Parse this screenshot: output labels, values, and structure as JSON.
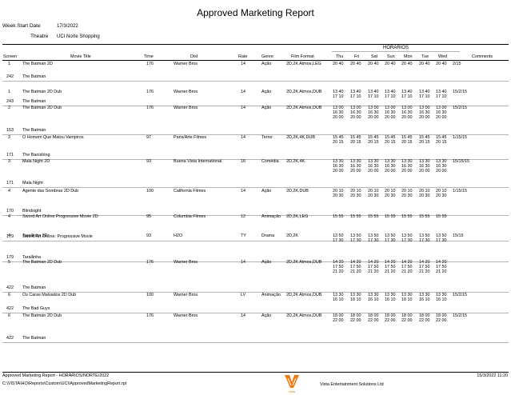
{
  "report": {
    "title": "Approved Marketing Report",
    "week_start_label": "Week Start Date",
    "week_start_value": "17/3/2022",
    "theatre_label": "Theatre",
    "theatre_value": "UCI Norte Shopping"
  },
  "columns": {
    "screen": "Screen",
    "movie_title": "Movie Title",
    "time": "Time",
    "dist": "Dist",
    "rate": "Rate",
    "genre": "Genre",
    "film_format": "Film Format",
    "horarios": "HORÁRIOS",
    "days": [
      "Thu",
      "Fri",
      "Sat",
      "Sun",
      "Mon",
      "Tue",
      "Wed"
    ],
    "comments": "Comments"
  },
  "rows": [
    {
      "screen": "1",
      "title": "The Batman 2D",
      "time": "176",
      "dist": "Warner Bros",
      "rate": "14",
      "genre": "Ação",
      "format": "2D,2K Atmos,LEG",
      "days": [
        "20 40",
        "20 40",
        "20 40",
        "20 40",
        "20 40",
        "20 40",
        "20 40"
      ],
      "wed_extra": "",
      "comments": "2/15",
      "sub_id": "242",
      "sub_title": "The Batman"
    },
    {
      "screen": "1",
      "title": "The Batman 2D Dub",
      "time": "176",
      "dist": "Warner Bros",
      "rate": "14",
      "genre": "Ação",
      "format": "2D,2K Atmos,DUB",
      "days": [
        "13 40\n17 10",
        "13 40\n17 10",
        "13 40\n17 10",
        "13 40\n17 10",
        "13 40\n17 10",
        "13 40\n17 10",
        "13 40\n17 10"
      ],
      "wed_extra": "",
      "comments": "15/2/15",
      "sub_id": "243",
      "sub_title": "The Batman"
    },
    {
      "screen": "2",
      "title": "The Batman 2D Dub",
      "time": "176",
      "dist": "Warner Bros",
      "rate": "14",
      "genre": "Ação",
      "format": "2D,2K Atmos,DUB",
      "days": [
        "13 00\n16 30\n20 00",
        "13 00\n16 30\n20 00",
        "13 00\n16 30\n20 00",
        "13 00\n16 30\n20 00",
        "13 00\n16 30\n20 00",
        "13 00\n16 30\n20 00",
        "13 00\n16 30\n20 00"
      ],
      "wed_extra": "",
      "comments": "15/2/15",
      "sub_id": "153",
      "sub_title": "The Batman"
    },
    {
      "screen": "3",
      "title": "O Homem Que Matou Vampiros",
      "time": "97",
      "dist": "Paris/Arte Filmes",
      "rate": "14",
      "genre": "Terror",
      "format": "2D,2K,4K,DUB",
      "days": [
        "15 45\n20 15",
        "15 45\n20 15",
        "15 45\n20 15",
        "15 45\n20 15",
        "15 45\n20 15",
        "15 45\n20 15",
        "15 45\n20 15"
      ],
      "wed_extra": "",
      "comments": "1/15/15",
      "sub_id": "171",
      "sub_title": "The Banishing"
    },
    {
      "screen": "3",
      "title": "Mala Night 2D",
      "time": "93",
      "dist": "Buena Vista International",
      "rate": "16",
      "genre": "Comédia",
      "format": "2D,2K,4K",
      "days": [
        "13 30\n16 30\n20 00",
        "13 30\n16 30\n20 00",
        "13 30\n16 30\n20 00",
        "13 30\n16 30\n20 00",
        "13 30\n16 30\n20 00",
        "13 30\n16 30\n20 00",
        "13 30\n16 30\n20 00"
      ],
      "wed_extra": "",
      "comments": "15/15/15",
      "sub_id": "171",
      "sub_title": "Mala Night"
    },
    {
      "screen": "4",
      "title": "Agente das Sombras 2D Dub",
      "time": "100",
      "dist": "California Filmes",
      "rate": "14",
      "genre": "Ação",
      "format": "2D,2K,DUB",
      "days": [
        "20 10\n20 30",
        "20 10\n20 30",
        "20 10\n20 30",
        "20 10\n20 30",
        "20 10\n20 30",
        "20 10\n20 30",
        "20 10\n20 30"
      ],
      "wed_extra": "",
      "comments": "1/15/15",
      "sub_id": "170",
      "sub_title": "Blindsight"
    },
    {
      "screen": "4",
      "title": "Sword Art Online Progressive Movie 2D",
      "time": "95",
      "dist": "Columbia Filmes",
      "rate": "12",
      "genre": "Animação",
      "format": "2D,2K,LEG",
      "days": [
        "15 55",
        "15 55",
        "15 55",
        "15 55",
        "15 55",
        "15 55",
        "15 55"
      ],
      "wed_extra": "",
      "comments": "",
      "sub_id": "179",
      "sub_title": "Sword Art Online: Progressive Movie"
    },
    {
      "screen": "4",
      "title": "Tarallinha 3D",
      "time": "93",
      "dist": "H2O",
      "rate": "TY",
      "genre": "Drama",
      "format": "2D,2K",
      "days": [
        "13 50\n17 30",
        "13 50\n17 30",
        "13 50\n17 30",
        "13 50\n17 30",
        "13 50\n17 30",
        "13 50\n17 30",
        "13 50\n17 30"
      ],
      "wed_extra": "",
      "comments": "15/15",
      "sub_id": "179",
      "sub_title": "Tarallinha"
    },
    {
      "screen": "5",
      "title": "The Batman 2D Dub",
      "time": "176",
      "dist": "Warner Bros",
      "rate": "14",
      "genre": "Ação",
      "format": "2D,2K Atmos,DUB",
      "days": [
        "14 20\n17 50\n21 20",
        "14 20\n17 50\n21 20",
        "14 20\n17 50\n21 20",
        "14 20\n17 50\n21 20",
        "14 20\n17 50\n21 20",
        "14 20\n17 50\n21 20",
        "14 20\n17 50\n21 20"
      ],
      "wed_extra": "",
      "comments": "",
      "sub_id": "422",
      "sub_title": "The Batman"
    },
    {
      "screen": "6",
      "title": "Os Caras Malvados 2D Dub",
      "time": "100",
      "dist": "Warner Bros",
      "rate": "LV",
      "genre": "Animação",
      "format": "2D,2K Atmos,DUB",
      "days": [
        "13 30\n16 10",
        "13 30\n16 10",
        "13 30\n16 10",
        "13 30\n16 10",
        "13 30\n16 10",
        "13 30\n16 10",
        "13 30\n16 10"
      ],
      "wed_extra": "",
      "comments": "15/2/15",
      "sub_id": "422",
      "sub_title": "The Bad Guys"
    },
    {
      "screen": "6",
      "title": "The Batman 2D Dub",
      "time": "176",
      "dist": "Warner Bros",
      "rate": "14",
      "genre": "Ação",
      "format": "2D,2K Atmos,DUB",
      "days": [
        "18 00\n22 00",
        "18 00\n22 00",
        "18 00\n22 00",
        "18 00\n22 00",
        "18 00\n22 00",
        "18 00\n22 00",
        "18 00\n22 00"
      ],
      "wed_extra": "",
      "comments": "15/2/15",
      "sub_id": "422",
      "sub_title": "The Batman"
    }
  ],
  "footer": {
    "report_line": "Approved Marketing Report - HORÁRIOS/NORTE/2022",
    "path": "C:\\VISTA\\HO\\Reports\\Custom\\UCI\\ApprovedMarketingReport.rpt",
    "company": "Vista Entertainment Solutions Ltd",
    "printed": "15/3/2022 11:20",
    "logo_text": "vista"
  }
}
